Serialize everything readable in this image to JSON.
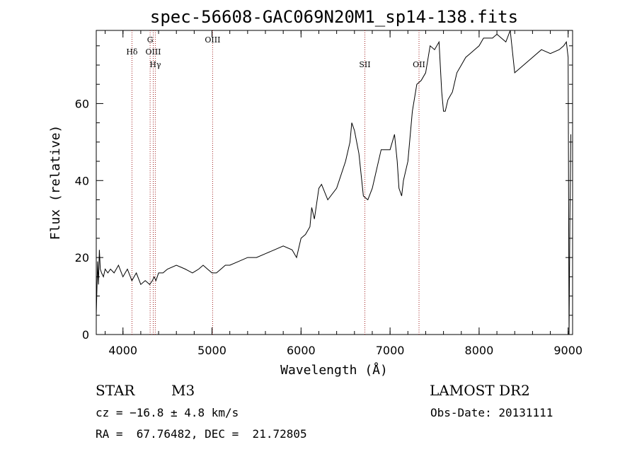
{
  "chart_data": {
    "type": "line",
    "title": "spec-56608-GAC069N20M1_sp14-138.fits",
    "xlabel": "Wavelength (Å)",
    "ylabel": "Flux (relative)",
    "xlim": [
      3700,
      9050
    ],
    "ylim": [
      0,
      79
    ],
    "xticks": [
      "4000",
      "5000",
      "6000",
      "7000",
      "8000",
      "9000"
    ],
    "yticks": [
      "0",
      "20",
      "40",
      "60"
    ],
    "series": [
      {
        "x": [
          3700,
          3715,
          3725,
          3735,
          3745,
          3760,
          3780,
          3800,
          3830,
          3860,
          3900,
          3950,
          4000,
          4050,
          4100,
          4150,
          4200,
          4250,
          4300,
          4330,
          4350,
          4370,
          4400,
          4450,
          4500,
          4600,
          4700,
          4780,
          4850,
          4900,
          4950,
          5000,
          5050,
          5100,
          5150,
          5200,
          5300,
          5400,
          5500,
          5600,
          5700,
          5800,
          5900,
          5950,
          6000,
          6050,
          6100,
          6120,
          6150,
          6200,
          6230,
          6300,
          6400,
          6500,
          6550,
          6570,
          6600,
          6650,
          6700,
          6750,
          6800,
          6900,
          7000,
          7050,
          7080,
          7100,
          7130,
          7150,
          7200,
          7250,
          7300,
          7350,
          7400,
          7450,
          7500,
          7550,
          7580,
          7600,
          7620,
          7650,
          7700,
          7750,
          7800,
          7850,
          7900,
          7950,
          8000,
          8050,
          8100,
          8150,
          8200,
          8250,
          8300,
          8350,
          8400,
          8500,
          8600,
          8700,
          8800,
          8900,
          8950,
          8980,
          9000,
          9010,
          9020,
          9030
        ],
        "y": [
          5,
          19,
          13,
          22,
          17,
          16,
          15,
          17,
          16,
          17,
          16,
          18,
          15,
          17,
          14,
          16,
          13,
          14,
          13,
          14,
          15,
          14,
          16,
          16,
          17,
          18,
          17,
          16,
          17,
          18,
          17,
          16,
          16,
          17,
          18,
          18,
          19,
          20,
          20,
          21,
          22,
          23,
          22,
          20,
          25,
          26,
          28,
          33,
          30,
          38,
          39,
          35,
          38,
          45,
          50,
          55,
          53,
          47,
          36,
          35,
          38,
          48,
          48,
          52,
          45,
          38,
          36,
          40,
          45,
          58,
          65,
          66,
          68,
          75,
          74,
          76,
          63,
          58,
          58,
          61,
          63,
          68,
          70,
          72,
          73,
          74,
          75,
          77,
          77,
          77,
          78,
          77,
          76,
          79,
          68,
          70,
          72,
          74,
          73,
          74,
          75,
          76,
          72,
          0,
          30,
          52
        ]
      }
    ],
    "annotations": [
      "Hδ",
      "G",
      "OIII",
      "Hγ",
      "OIII",
      "SII",
      "OII"
    ]
  },
  "line_markers": [
    {
      "id": "hdelta",
      "wavelength": 4101,
      "label": "Hδ",
      "tier": 2
    },
    {
      "id": "g",
      "wavelength": 4305,
      "label": "G",
      "tier": 1
    },
    {
      "id": "oiii-a",
      "wavelength": 4340,
      "label": "OIII",
      "tier": 2
    },
    {
      "id": "hgamma",
      "wavelength": 4363,
      "label": "Hγ",
      "tier": 3
    },
    {
      "id": "oiii-b",
      "wavelength": 5007,
      "label": "OIII",
      "tier": 1
    },
    {
      "id": "sii",
      "wavelength": 6717,
      "label": "SII",
      "tier": 3
    },
    {
      "id": "oii",
      "wavelength": 7325,
      "label": "OII",
      "tier": 3
    }
  ],
  "info": {
    "class": "STAR",
    "subclass": "M3",
    "survey": "LAMOST DR2",
    "cz": "cz = −16.8 ± 4.8 km/s",
    "obs_date": "Obs-Date: 20131111",
    "coords": "RA =  67.76482, DEC =  21.72805"
  },
  "colors": {
    "line": "#000000",
    "marker": "#a02020"
  }
}
